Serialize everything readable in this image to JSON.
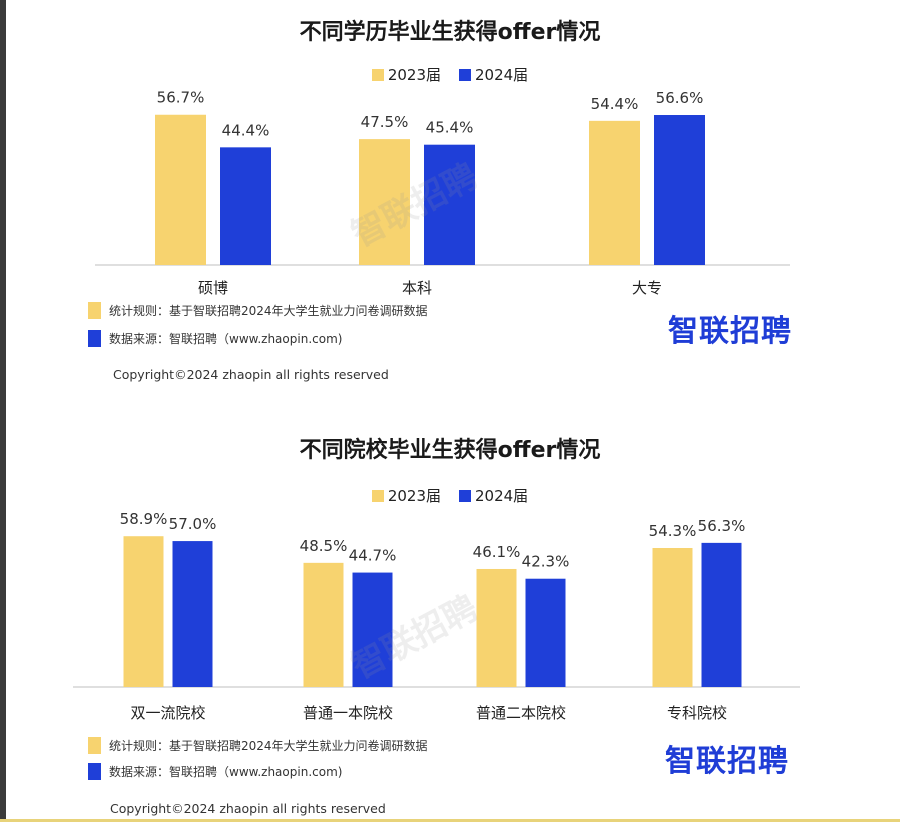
{
  "colors": {
    "y2023": "#F7D36F",
    "y2024": "#1F3FD8",
    "axis": "#cccccc"
  },
  "panels": [
    {
      "title": "不同学历毕业生获得offer情况",
      "legend": [
        "2023届",
        "2024届"
      ],
      "note_rule": "统计规则：基于智联招聘2024年大学生就业力问卷调研数据",
      "note_source": "数据来源：智联招聘（www.zhaopin.com)",
      "logo": "智联招聘",
      "watermark": "智联招聘",
      "copyright": "Copyright©2024 zhaopin all rights reserved"
    },
    {
      "title": "不同院校毕业生获得offer情况",
      "legend": [
        "2023届",
        "2024届"
      ],
      "note_rule": "统计规则：基于智联招聘2024年大学生就业力问卷调研数据",
      "note_source": "数据来源：智联招聘（www.zhaopin.com)",
      "logo": "智联招聘",
      "watermark": "智联招聘",
      "copyright": "Copyright©2024 zhaopin all rights reserved"
    }
  ],
  "chart_data": [
    {
      "type": "bar",
      "title": "不同学历毕业生获得offer情况",
      "categories": [
        "硕博",
        "本科",
        "大专"
      ],
      "series": [
        {
          "name": "2023届",
          "values": [
            56.7,
            47.5,
            54.4
          ],
          "labels": [
            "56.7%",
            "47.5%",
            "54.4%"
          ]
        },
        {
          "name": "2024届",
          "values": [
            44.4,
            45.4,
            56.6
          ],
          "labels": [
            "44.4%",
            "45.4%",
            "56.6%"
          ]
        }
      ],
      "ylim": [
        0,
        100
      ],
      "grid": false,
      "legend_position": "top-center"
    },
    {
      "type": "bar",
      "title": "不同院校毕业生获得offer情况",
      "categories": [
        "双一流院校",
        "普通一本院校",
        "普通二本院校",
        "专科院校"
      ],
      "series": [
        {
          "name": "2023届",
          "values": [
            58.9,
            48.5,
            46.1,
            54.3
          ],
          "labels": [
            "58.9%",
            "48.5%",
            "46.1%",
            "54.3%"
          ]
        },
        {
          "name": "2024届",
          "values": [
            57.0,
            44.7,
            42.3,
            56.3
          ],
          "labels": [
            "57.0%",
            "44.7%",
            "42.3%",
            "56.3%"
          ]
        }
      ],
      "ylim": [
        0,
        100
      ],
      "grid": false,
      "legend_position": "top-center"
    }
  ]
}
